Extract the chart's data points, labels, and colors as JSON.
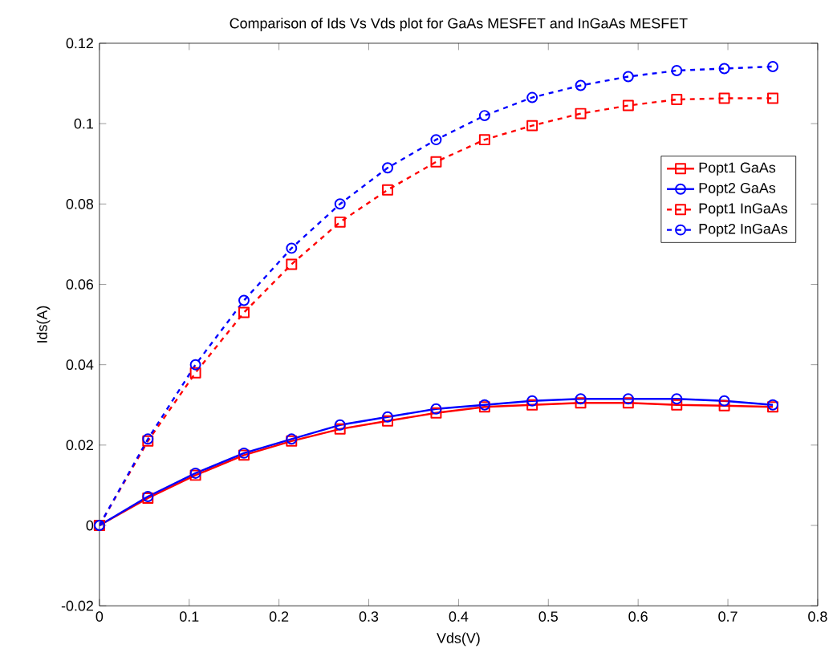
{
  "chart_data": {
    "type": "line",
    "title": "Comparison of Ids Vs Vds plot for GaAs MESFET and InGaAs MESFET",
    "xlabel": "Vds(V)",
    "ylabel": "Ids(A)",
    "x": [
      0,
      0.054,
      0.107,
      0.161,
      0.214,
      0.268,
      0.321,
      0.375,
      0.429,
      0.482,
      0.536,
      0.589,
      0.643,
      0.696,
      0.75
    ],
    "series": [
      {
        "name": "Popt1 GaAs",
        "color": "#ff0000",
        "marker": "square",
        "line_style": "solid",
        "values": [
          0,
          0.0068,
          0.0125,
          0.0175,
          0.021,
          0.024,
          0.026,
          0.028,
          0.0295,
          0.03,
          0.0305,
          0.0305,
          0.03,
          0.0298,
          0.0295
        ]
      },
      {
        "name": "Popt2 GaAs",
        "color": "#0000ff",
        "marker": "circle",
        "line_style": "solid",
        "values": [
          0,
          0.0072,
          0.013,
          0.018,
          0.0215,
          0.025,
          0.027,
          0.029,
          0.03,
          0.031,
          0.0315,
          0.0315,
          0.0315,
          0.031,
          0.03
        ]
      },
      {
        "name": "Popt1 InGaAs",
        "color": "#ff0000",
        "marker": "square",
        "line_style": "dashed",
        "values": [
          0,
          0.021,
          0.038,
          0.053,
          0.065,
          0.0755,
          0.0835,
          0.0905,
          0.096,
          0.0995,
          0.1025,
          0.1045,
          0.106,
          0.1063,
          0.1063
        ]
      },
      {
        "name": "Popt2 InGaAs",
        "color": "#0000ff",
        "marker": "circle",
        "line_style": "dashed",
        "values": [
          0,
          0.0215,
          0.04,
          0.056,
          0.069,
          0.08,
          0.089,
          0.096,
          0.102,
          0.1065,
          0.1095,
          0.1117,
          0.1132,
          0.1137,
          0.1142
        ]
      }
    ],
    "xlim": [
      0,
      0.8
    ],
    "xticks": [
      0,
      0.1,
      0.2,
      0.3,
      0.4,
      0.5,
      0.6,
      0.7,
      0.8
    ],
    "ylim": [
      -0.02,
      0.12
    ],
    "yticks": [
      -0.02,
      0,
      0.02,
      0.04,
      0.06,
      0.08,
      0.1,
      0.12
    ],
    "grid": false,
    "legend": "top right"
  }
}
